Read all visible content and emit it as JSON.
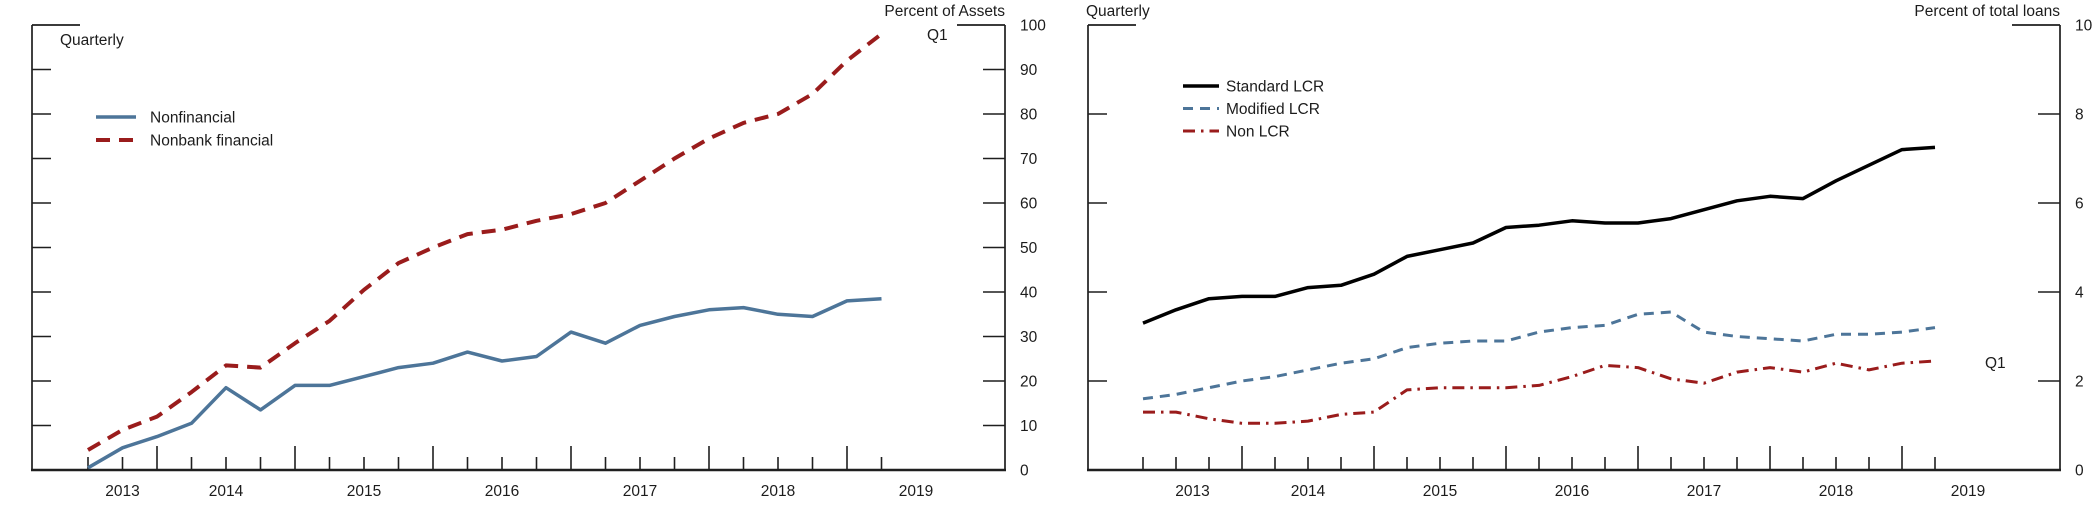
{
  "figure": {
    "background": "#ffffff",
    "axis_color": "#1f1f1f",
    "text_color": "#1c1c1c"
  },
  "chart_data": [
    {
      "type": "line",
      "id": "loans-by-counterparty",
      "corner_label": "Quarterly",
      "axis_unit_label": "Percent of Assets",
      "end_point_label": "Q1",
      "frequency": "quarterly",
      "x_first_quarter": "2013 Q2",
      "x_last_quarter": "2019 Q1",
      "x_plot_start": 2013.5,
      "x_step": 0.25,
      "x_year_labels": [
        "2013",
        "2014",
        "2015",
        "2016",
        "2017",
        "2018",
        "2019"
      ],
      "y_ticks": [
        0,
        10,
        20,
        30,
        40,
        50,
        60,
        70,
        80,
        90,
        100
      ],
      "ylim": [
        0,
        100
      ],
      "grid": false,
      "legend_position": "top-left-inside",
      "legend": [
        {
          "label": "Nonfinancial",
          "color": "#4d7599",
          "style": "solid"
        },
        {
          "label": "Nonbank financial",
          "color": "#9a1c1c",
          "style": "dashed"
        }
      ],
      "series": [
        {
          "name": "Nonfinancial",
          "values": [
            0.5,
            5,
            7.5,
            10.5,
            18.5,
            13.5,
            19,
            19,
            21,
            23,
            24,
            26.5,
            24.5,
            25.5,
            31,
            28.5,
            32.5,
            34.5,
            36,
            36.5,
            35,
            34.5,
            38,
            38.5
          ]
        },
        {
          "name": "Nonbank financial",
          "values": [
            4.5,
            9,
            12,
            17.5,
            23.5,
            23,
            28.5,
            33.5,
            40.5,
            46.5,
            50,
            53,
            54,
            56,
            57.5,
            60,
            65,
            70,
            74.5,
            78,
            80,
            84.5,
            92,
            98
          ]
        }
      ]
    },
    {
      "type": "line",
      "id": "loans-by-lcr-status",
      "corner_label": "Quarterly",
      "axis_unit_label": "Percent of total loans",
      "end_point_label": "Q1",
      "frequency": "quarterly",
      "x_first_quarter": "2013 Q1",
      "x_last_quarter": "2019 Q1",
      "x_plot_start": 2013.25,
      "x_step": 0.25,
      "x_year_labels": [
        "2013",
        "2014",
        "2015",
        "2016",
        "2017",
        "2018",
        "2019"
      ],
      "y_ticks": [
        0,
        2,
        4,
        6,
        8,
        10
      ],
      "ylim": [
        0,
        10
      ],
      "grid": false,
      "legend_position": "top-left-inside",
      "legend": [
        {
          "label": "Standard LCR",
          "color": "#000000",
          "style": "solid"
        },
        {
          "label": "Modified LCR",
          "color": "#4d7599",
          "style": "dashed"
        },
        {
          "label": "Non LCR",
          "color": "#9a1c1c",
          "style": "dash-dot"
        }
      ],
      "series": [
        {
          "name": "Standard LCR",
          "values": [
            3.3,
            3.6,
            3.85,
            3.9,
            3.9,
            4.1,
            4.15,
            4.4,
            4.8,
            4.95,
            5.1,
            5.45,
            5.5,
            5.6,
            5.55,
            5.55,
            5.65,
            5.85,
            6.05,
            6.15,
            6.1,
            6.5,
            6.85,
            7.2,
            7.25
          ]
        },
        {
          "name": "Modified LCR",
          "values": [
            1.6,
            1.7,
            1.85,
            2.0,
            2.1,
            2.25,
            2.4,
            2.5,
            2.75,
            2.85,
            2.9,
            2.9,
            3.1,
            3.2,
            3.25,
            3.5,
            3.55,
            3.1,
            3.0,
            2.95,
            2.9,
            3.05,
            3.05,
            3.1,
            3.2
          ]
        },
        {
          "name": "Non LCR",
          "values": [
            1.3,
            1.3,
            1.15,
            1.05,
            1.05,
            1.1,
            1.25,
            1.3,
            1.8,
            1.85,
            1.85,
            1.85,
            1.9,
            2.1,
            2.35,
            2.3,
            2.05,
            1.95,
            2.2,
            2.3,
            2.2,
            2.4,
            2.25,
            2.4,
            2.45
          ]
        }
      ]
    }
  ]
}
